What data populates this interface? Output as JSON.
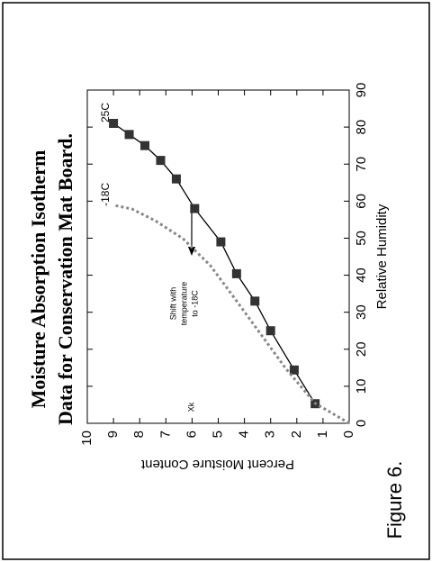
{
  "chart_data": {
    "type": "line",
    "title": [
      "Moisture Absorption Isotherm",
      "Data for Conservation Mat Board."
    ],
    "xlabel": "Relative Humidity",
    "ylabel": "Percent Moisture Content",
    "xlim": [
      0,
      90
    ],
    "xticks": [
      0,
      10,
      20,
      30,
      40,
      50,
      60,
      70,
      80,
      90
    ],
    "ylim": [
      0,
      10
    ],
    "yticks": [
      0,
      1,
      2,
      3,
      4,
      5,
      6,
      7,
      8,
      9,
      10
    ],
    "series": [
      {
        "name": "25C",
        "color": "#333333",
        "markers": true,
        "dashed": false,
        "x": [
          5.3,
          14.4,
          25,
          33,
          40.4,
          49,
          58,
          66,
          71,
          75,
          78,
          81
        ],
        "values": [
          1.3,
          2.1,
          3.0,
          3.6,
          4.3,
          4.9,
          5.9,
          6.6,
          7.2,
          7.8,
          8.4,
          9.0
        ]
      },
      {
        "name": "-18C",
        "color": "#888888",
        "markers": false,
        "dashed": true,
        "x": [
          0,
          5.4,
          14.6,
          24.3,
          34,
          42.6,
          49.9,
          54.7,
          57.9,
          58.9
        ],
        "values": [
          0,
          1.3,
          2.4,
          3.4,
          4.4,
          5.3,
          6.35,
          7.4,
          8.3,
          9.0
        ]
      }
    ],
    "annotations": {
      "shift": [
        "Shift with",
        "temperature",
        "to -18C"
      ],
      "xk": "Xk"
    },
    "caption": "Figure 6."
  }
}
